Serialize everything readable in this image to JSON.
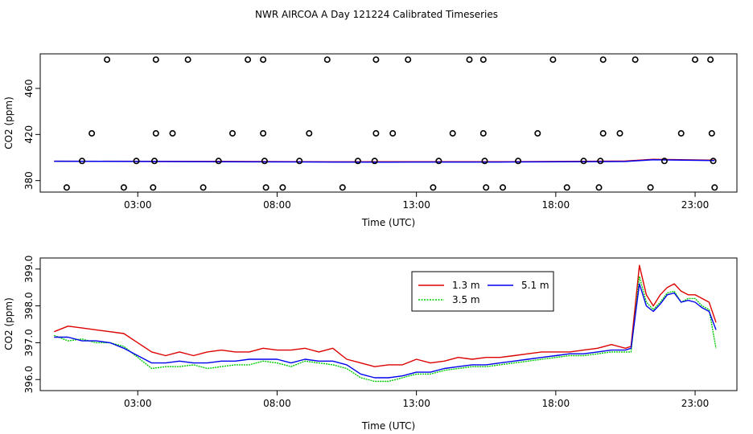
{
  "title": "NWR AIRCOA A  Day 121224  Calibrated Timeseries",
  "chart_data": [
    {
      "type": "scatter",
      "xlabel": "Time (UTC)",
      "ylabel": "CO2 (ppm)",
      "xlim": [
        -0.5,
        24.5
      ],
      "ylim": [
        370,
        490
      ],
      "x_ticks": [
        3,
        8,
        13,
        18,
        23
      ],
      "x_tick_labels": [
        "03:00",
        "08:00",
        "13:00",
        "18:00",
        "23:00"
      ],
      "y_ticks": [
        380,
        420,
        460
      ],
      "y_tick_labels": [
        "380",
        "420",
        "460"
      ],
      "points": [
        {
          "x": 1.9,
          "y": 485
        },
        {
          "x": 3.65,
          "y": 485
        },
        {
          "x": 4.8,
          "y": 485
        },
        {
          "x": 6.95,
          "y": 485
        },
        {
          "x": 7.5,
          "y": 485
        },
        {
          "x": 9.8,
          "y": 485
        },
        {
          "x": 11.55,
          "y": 485
        },
        {
          "x": 12.7,
          "y": 485
        },
        {
          "x": 14.9,
          "y": 485
        },
        {
          "x": 15.4,
          "y": 485
        },
        {
          "x": 17.9,
          "y": 485
        },
        {
          "x": 19.7,
          "y": 485
        },
        {
          "x": 20.85,
          "y": 485
        },
        {
          "x": 23.0,
          "y": 485
        },
        {
          "x": 23.55,
          "y": 485
        },
        {
          "x": 1.35,
          "y": 421
        },
        {
          "x": 3.65,
          "y": 421
        },
        {
          "x": 4.25,
          "y": 421
        },
        {
          "x": 6.4,
          "y": 421
        },
        {
          "x": 7.5,
          "y": 421
        },
        {
          "x": 9.15,
          "y": 421
        },
        {
          "x": 11.55,
          "y": 421
        },
        {
          "x": 12.15,
          "y": 421
        },
        {
          "x": 14.3,
          "y": 421
        },
        {
          "x": 15.4,
          "y": 421
        },
        {
          "x": 17.35,
          "y": 421
        },
        {
          "x": 19.7,
          "y": 421
        },
        {
          "x": 20.3,
          "y": 421
        },
        {
          "x": 22.5,
          "y": 421
        },
        {
          "x": 23.6,
          "y": 421
        },
        {
          "x": 1.0,
          "y": 397
        },
        {
          "x": 2.95,
          "y": 397
        },
        {
          "x": 3.6,
          "y": 397
        },
        {
          "x": 5.9,
          "y": 397
        },
        {
          "x": 7.55,
          "y": 397
        },
        {
          "x": 8.8,
          "y": 397
        },
        {
          "x": 10.9,
          "y": 397
        },
        {
          "x": 11.5,
          "y": 397
        },
        {
          "x": 13.8,
          "y": 397
        },
        {
          "x": 15.45,
          "y": 397
        },
        {
          "x": 16.65,
          "y": 397
        },
        {
          "x": 19.0,
          "y": 397
        },
        {
          "x": 19.6,
          "y": 397
        },
        {
          "x": 21.9,
          "y": 397
        },
        {
          "x": 23.65,
          "y": 397
        },
        {
          "x": 0.45,
          "y": 374
        },
        {
          "x": 2.5,
          "y": 374
        },
        {
          "x": 3.55,
          "y": 374
        },
        {
          "x": 5.35,
          "y": 374
        },
        {
          "x": 7.6,
          "y": 374
        },
        {
          "x": 8.2,
          "y": 374
        },
        {
          "x": 10.35,
          "y": 374
        },
        {
          "x": 13.6,
          "y": 374
        },
        {
          "x": 15.5,
          "y": 374
        },
        {
          "x": 16.1,
          "y": 374
        },
        {
          "x": 18.4,
          "y": 374
        },
        {
          "x": 19.55,
          "y": 374
        },
        {
          "x": 21.4,
          "y": 374
        },
        {
          "x": 23.7,
          "y": 374
        }
      ],
      "lines": [
        {
          "color": "#dd0000",
          "x": [
            0,
            6,
            10,
            12,
            16,
            20.5,
            21.5,
            23.7
          ],
          "y": [
            396.8,
            396.6,
            396.2,
            396.4,
            396.3,
            396.9,
            398.4,
            397.6
          ]
        },
        {
          "color": "#0000ee",
          "x": [
            0,
            6,
            10,
            12,
            16,
            20.5,
            21.5,
            23.7
          ],
          "y": [
            396.8,
            396.4,
            396.1,
            396.0,
            396.1,
            396.6,
            398.1,
            397.4
          ]
        }
      ]
    },
    {
      "type": "line",
      "xlabel": "Time (UTC)",
      "ylabel": "CO2 (ppm)",
      "xlim": [
        -0.5,
        24.5
      ],
      "ylim": [
        395.7,
        399.3
      ],
      "x_ticks": [
        3,
        8,
        13,
        18,
        23
      ],
      "x_tick_labels": [
        "03:00",
        "08:00",
        "13:00",
        "18:00",
        "23:00"
      ],
      "y_ticks": [
        396.0,
        397.0,
        398.0,
        399.0
      ],
      "y_tick_labels": [
        "396.0",
        "397.0",
        "398.0",
        "399.0"
      ],
      "legend_position": "top-right",
      "series": [
        {
          "name": "1.3 m",
          "color": "#dd0000",
          "x": [
            0.0,
            0.5,
            1.0,
            1.5,
            2.0,
            2.5,
            3.0,
            3.5,
            4.0,
            4.5,
            5.0,
            5.5,
            6.0,
            6.5,
            7.0,
            7.5,
            8.0,
            8.5,
            9.0,
            9.5,
            10.0,
            10.5,
            11.0,
            11.5,
            12.0,
            12.5,
            13.0,
            13.5,
            14.0,
            14.5,
            15.0,
            15.5,
            16.0,
            16.5,
            17.0,
            17.5,
            18.0,
            18.5,
            19.0,
            19.5,
            20.0,
            20.5,
            20.7,
            21.0,
            21.25,
            21.5,
            21.75,
            22.0,
            22.25,
            22.5,
            22.75,
            23.0,
            23.25,
            23.5,
            23.75
          ],
          "y": [
            397.3,
            397.45,
            397.4,
            397.35,
            397.3,
            397.25,
            397.0,
            396.75,
            396.65,
            396.75,
            396.65,
            396.75,
            396.8,
            396.75,
            396.75,
            396.85,
            396.8,
            396.8,
            396.85,
            396.75,
            396.85,
            396.55,
            396.45,
            396.35,
            396.4,
            396.4,
            396.55,
            396.45,
            396.5,
            396.6,
            396.55,
            396.6,
            396.6,
            396.65,
            396.7,
            396.75,
            396.75,
            396.75,
            396.8,
            396.85,
            396.95,
            396.85,
            396.9,
            399.1,
            398.3,
            398.0,
            398.3,
            398.5,
            398.6,
            398.4,
            398.3,
            398.3,
            398.2,
            398.1,
            397.55
          ]
        },
        {
          "name": "3.5 m",
          "color": "#00cc00",
          "x": [
            0.0,
            0.5,
            1.0,
            1.5,
            2.0,
            2.5,
            3.0,
            3.5,
            4.0,
            4.5,
            5.0,
            5.5,
            6.0,
            6.5,
            7.0,
            7.5,
            8.0,
            8.5,
            9.0,
            9.5,
            10.0,
            10.5,
            11.0,
            11.5,
            12.0,
            12.5,
            13.0,
            13.5,
            14.0,
            14.5,
            15.0,
            15.5,
            16.0,
            16.5,
            17.0,
            17.5,
            18.0,
            18.5,
            19.0,
            19.5,
            20.0,
            20.5,
            20.7,
            21.0,
            21.25,
            21.5,
            21.75,
            22.0,
            22.25,
            22.5,
            22.75,
            23.0,
            23.25,
            23.5,
            23.75
          ],
          "y": [
            397.2,
            397.05,
            397.1,
            397.0,
            397.0,
            396.9,
            396.6,
            396.3,
            396.35,
            396.35,
            396.4,
            396.3,
            396.35,
            396.4,
            396.4,
            396.5,
            396.45,
            396.35,
            396.5,
            396.45,
            396.4,
            396.3,
            396.05,
            395.95,
            395.95,
            396.05,
            396.15,
            396.15,
            396.25,
            396.3,
            396.35,
            396.35,
            396.4,
            396.45,
            396.5,
            396.55,
            396.6,
            396.65,
            396.65,
            396.7,
            396.75,
            396.75,
            396.75,
            398.8,
            398.1,
            397.9,
            398.1,
            398.35,
            398.4,
            398.1,
            398.2,
            398.2,
            398.0,
            397.9,
            396.85
          ]
        },
        {
          "name": "5.1 m",
          "color": "#0000ee",
          "x": [
            0.0,
            0.5,
            1.0,
            1.5,
            2.0,
            2.5,
            3.0,
            3.5,
            4.0,
            4.5,
            5.0,
            5.5,
            6.0,
            6.5,
            7.0,
            7.5,
            8.0,
            8.5,
            9.0,
            9.5,
            10.0,
            10.5,
            11.0,
            11.5,
            12.0,
            12.5,
            13.0,
            13.5,
            14.0,
            14.5,
            15.0,
            15.5,
            16.0,
            16.5,
            17.0,
            17.5,
            18.0,
            18.5,
            19.0,
            19.5,
            20.0,
            20.5,
            20.7,
            21.0,
            21.25,
            21.5,
            21.75,
            22.0,
            22.25,
            22.5,
            22.75,
            23.0,
            23.25,
            23.5,
            23.75
          ],
          "y": [
            397.15,
            397.15,
            397.05,
            397.05,
            397.0,
            396.85,
            396.65,
            396.45,
            396.45,
            396.5,
            396.45,
            396.45,
            396.5,
            396.5,
            396.55,
            396.55,
            396.55,
            396.45,
            396.55,
            396.5,
            396.5,
            396.4,
            396.15,
            396.05,
            396.05,
            396.1,
            396.2,
            396.2,
            396.3,
            396.35,
            396.4,
            396.4,
            396.45,
            396.5,
            396.55,
            396.6,
            396.65,
            396.7,
            396.7,
            396.75,
            396.8,
            396.8,
            396.85,
            398.6,
            398.0,
            397.85,
            398.05,
            398.3,
            398.35,
            398.1,
            398.15,
            398.1,
            397.95,
            397.85,
            397.35
          ]
        }
      ]
    }
  ]
}
